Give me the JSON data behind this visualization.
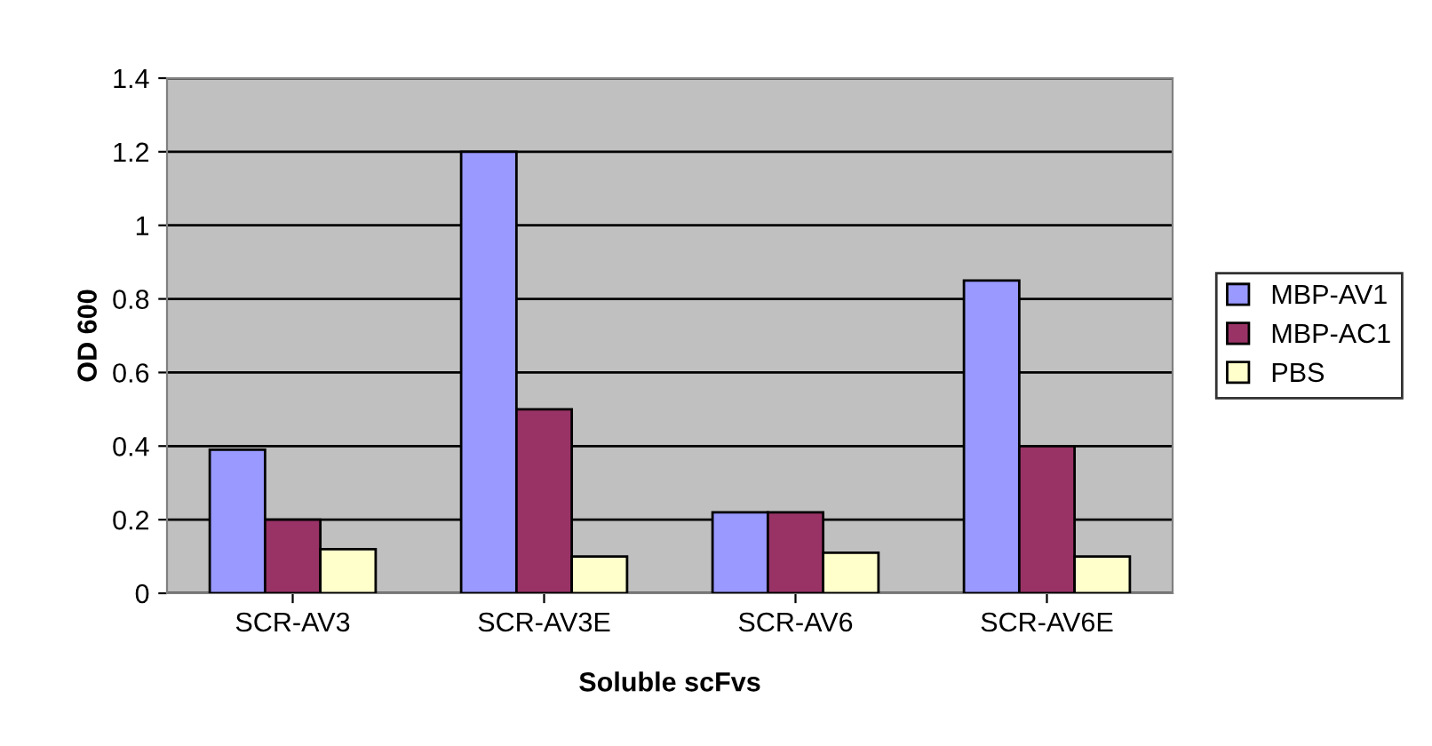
{
  "chart_data": {
    "type": "bar",
    "xlabel": "Soluble scFvs",
    "ylabel": "OD 600",
    "categories": [
      "SCR-AV3",
      "SCR-AV3E",
      "SCR-AV6",
      "SCR-AV6E"
    ],
    "series": [
      {
        "name": "MBP-AV1",
        "color": "#9999ff",
        "values": [
          0.39,
          1.2,
          0.22,
          0.85
        ]
      },
      {
        "name": "MBP-AC1",
        "color": "#993366",
        "values": [
          0.2,
          0.5,
          0.22,
          0.4
        ]
      },
      {
        "name": "PBS",
        "color": "#ffffcc",
        "values": [
          0.12,
          0.1,
          0.11,
          0.1
        ]
      }
    ],
    "ylim": [
      0,
      1.4
    ],
    "yticks": [
      0,
      0.2,
      0.4,
      0.6,
      0.8,
      1,
      1.2,
      1.4
    ],
    "grid": "y",
    "legend": "right"
  }
}
